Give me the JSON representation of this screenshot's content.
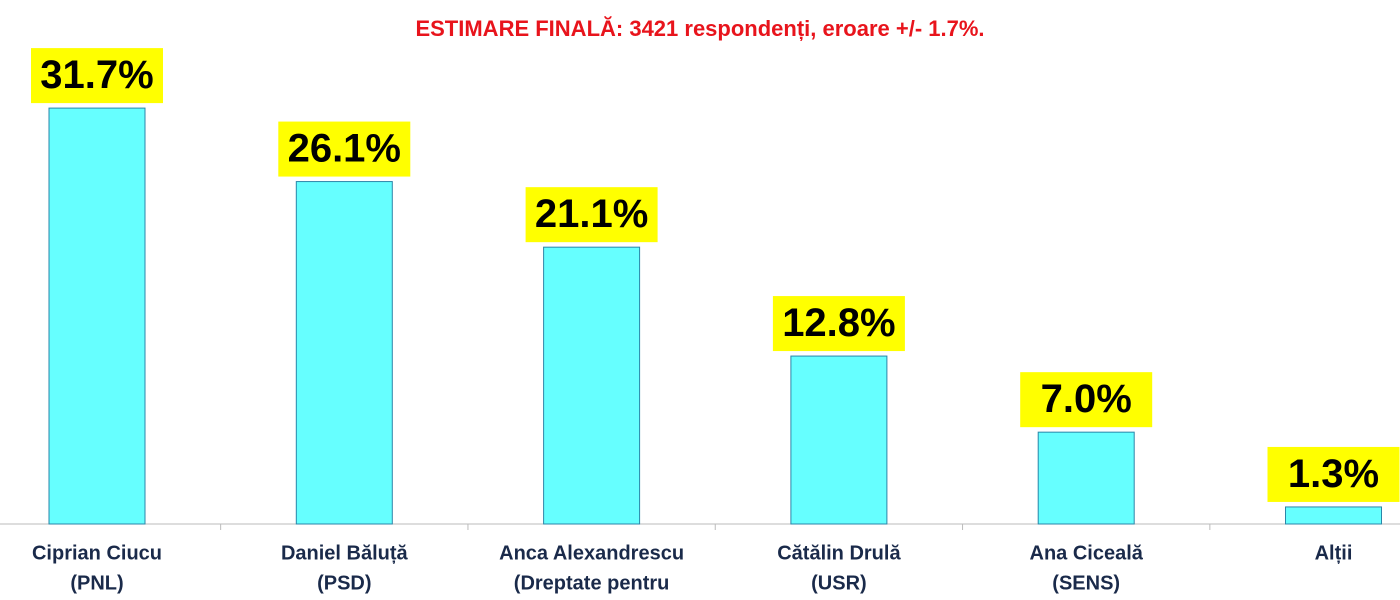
{
  "chart_data": {
    "type": "bar",
    "title": "ESTIMARE FINALĂ: 3421 respondenți, eroare +/- 1.7%.",
    "categories": [
      [
        "Ciprian Ciucu",
        "(PNL)"
      ],
      [
        "Daniel Băluță",
        "(PSD)"
      ],
      [
        "Anca Alexandrescu",
        "(Dreptate pentru"
      ],
      [
        "Cătălin Drulă",
        "(USR)"
      ],
      [
        "Ana Ciceală",
        "(SENS)"
      ],
      [
        "Alții"
      ]
    ],
    "values": [
      31.7,
      26.1,
      21.1,
      12.8,
      7.0,
      1.3
    ],
    "value_labels": [
      "31.7%",
      "26.1%",
      "21.1%",
      "12.8%",
      "7.0%",
      "1.3%"
    ],
    "color": "#66ffff"
  }
}
